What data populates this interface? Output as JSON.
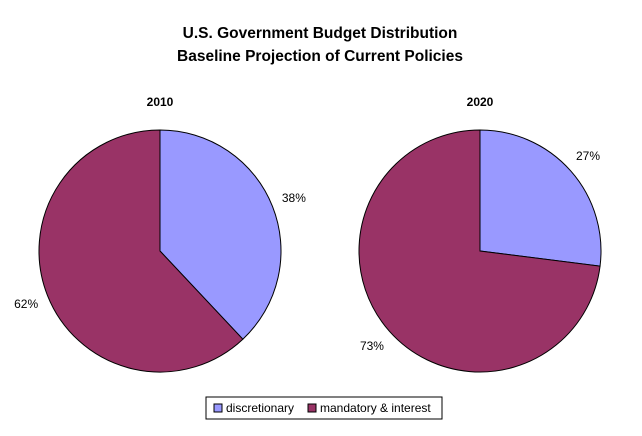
{
  "chart_data": {
    "type": "pie",
    "title_line1": "U.S. Government Budget Distribution",
    "title_line2": "Baseline Projection of Current Policies",
    "categories": [
      "discretionary",
      "mandatory & interest"
    ],
    "colors": {
      "discretionary": "#9999ff",
      "mandatory & interest": "#993366"
    },
    "legend_position": "bottom",
    "pies": [
      {
        "label": "2010",
        "values": [
          38,
          62
        ],
        "value_labels": [
          "38%",
          "62%"
        ]
      },
      {
        "label": "2020",
        "values": [
          27,
          73
        ],
        "value_labels": [
          "27%",
          "73%"
        ]
      }
    ]
  }
}
